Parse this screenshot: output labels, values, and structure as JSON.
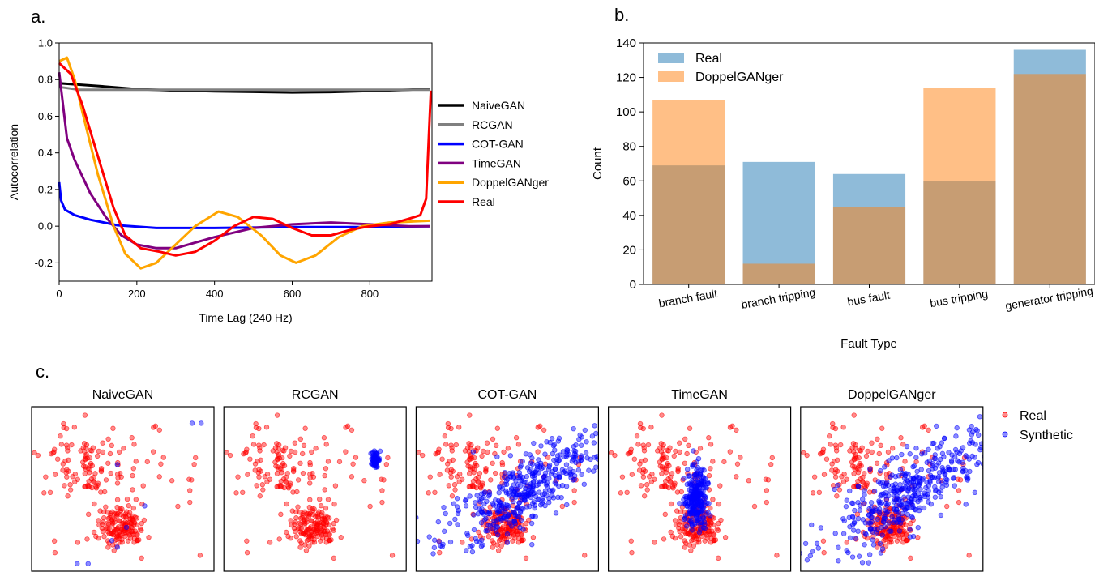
{
  "panels": {
    "a": "a.",
    "b": "b.",
    "c": "c."
  },
  "chart_data": [
    {
      "type": "line",
      "xlabel": "Time Lag (240 Hz)",
      "ylabel": "Autocorrelation",
      "xlim": [
        0,
        960
      ],
      "ylim": [
        -0.3,
        1.0
      ],
      "xticks": [
        "0",
        "200",
        "400",
        "600",
        "800"
      ],
      "yticks": [
        "-0.2",
        "0.0",
        "0.2",
        "0.4",
        "0.6",
        "0.8",
        "1.0"
      ],
      "legend_position": "outside-right",
      "series": [
        {
          "name": "NaiveGAN",
          "color": "#000000",
          "points": [
            [
              0,
              0.78
            ],
            [
              100,
              0.765
            ],
            [
              200,
              0.748
            ],
            [
              300,
              0.74
            ],
            [
              400,
              0.736
            ],
            [
              500,
              0.733
            ],
            [
              600,
              0.73
            ],
            [
              700,
              0.732
            ],
            [
              800,
              0.738
            ],
            [
              900,
              0.745
            ],
            [
              955,
              0.75
            ]
          ]
        },
        {
          "name": "RCGAN",
          "color": "#808080",
          "points": [
            [
              0,
              0.76
            ],
            [
              50,
              0.745
            ],
            [
              200,
              0.745
            ],
            [
              400,
              0.745
            ],
            [
              600,
              0.745
            ],
            [
              800,
              0.745
            ],
            [
              955,
              0.745
            ]
          ]
        },
        {
          "name": "COT-GAN",
          "color": "#0000ff",
          "points": [
            [
              0,
              0.24
            ],
            [
              5,
              0.14
            ],
            [
              15,
              0.09
            ],
            [
              40,
              0.06
            ],
            [
              80,
              0.035
            ],
            [
              150,
              0.005
            ],
            [
              250,
              -0.01
            ],
            [
              400,
              -0.01
            ],
            [
              600,
              -0.005
            ],
            [
              800,
              -0.005
            ],
            [
              955,
              0.0
            ]
          ]
        },
        {
          "name": "TimeGAN",
          "color": "#800080",
          "points": [
            [
              0,
              0.84
            ],
            [
              20,
              0.48
            ],
            [
              40,
              0.36
            ],
            [
              80,
              0.18
            ],
            [
              120,
              0.05
            ],
            [
              160,
              -0.05
            ],
            [
              200,
              -0.1
            ],
            [
              250,
              -0.12
            ],
            [
              300,
              -0.12
            ],
            [
              400,
              -0.06
            ],
            [
              500,
              -0.01
            ],
            [
              600,
              0.01
            ],
            [
              700,
              0.02
            ],
            [
              800,
              0.01
            ],
            [
              900,
              0.0
            ],
            [
              955,
              0.0
            ]
          ]
        },
        {
          "name": "DoppelGANger",
          "color": "#ffa500",
          "points": [
            [
              0,
              0.9
            ],
            [
              20,
              0.92
            ],
            [
              40,
              0.8
            ],
            [
              60,
              0.62
            ],
            [
              100,
              0.28
            ],
            [
              140,
              0.0
            ],
            [
              170,
              -0.15
            ],
            [
              210,
              -0.23
            ],
            [
              250,
              -0.2
            ],
            [
              300,
              -0.1
            ],
            [
              350,
              0.0
            ],
            [
              410,
              0.08
            ],
            [
              460,
              0.05
            ],
            [
              520,
              -0.05
            ],
            [
              570,
              -0.16
            ],
            [
              610,
              -0.2
            ],
            [
              660,
              -0.16
            ],
            [
              720,
              -0.06
            ],
            [
              780,
              0.0
            ],
            [
              850,
              0.02
            ],
            [
              955,
              0.03
            ]
          ]
        },
        {
          "name": "Real",
          "color": "#ff0000",
          "points": [
            [
              0,
              0.89
            ],
            [
              30,
              0.83
            ],
            [
              60,
              0.66
            ],
            [
              100,
              0.38
            ],
            [
              140,
              0.1
            ],
            [
              170,
              -0.05
            ],
            [
              210,
              -0.12
            ],
            [
              260,
              -0.14
            ],
            [
              300,
              -0.16
            ],
            [
              350,
              -0.14
            ],
            [
              400,
              -0.08
            ],
            [
              450,
              0.0
            ],
            [
              500,
              0.05
            ],
            [
              550,
              0.04
            ],
            [
              600,
              -0.01
            ],
            [
              650,
              -0.05
            ],
            [
              700,
              -0.05
            ],
            [
              750,
              -0.02
            ],
            [
              800,
              0.0
            ],
            [
              850,
              0.01
            ],
            [
              900,
              0.04
            ],
            [
              930,
              0.06
            ],
            [
              945,
              0.15
            ],
            [
              952,
              0.5
            ],
            [
              957,
              0.74
            ]
          ]
        }
      ]
    },
    {
      "type": "bar",
      "xlabel": "Fault Type",
      "ylabel": "Count",
      "ylim": [
        0,
        140
      ],
      "yticks": [
        "0",
        "20",
        "40",
        "60",
        "80",
        "100",
        "120",
        "140"
      ],
      "categories": [
        "branch fault",
        "branch tripping",
        "bus fault",
        "bus tripping",
        "generator tripping"
      ],
      "legend_position": "upper-left",
      "series": [
        {
          "name": "Real",
          "color": "#1f77b4",
          "values": [
            69,
            71,
            64,
            60,
            136
          ]
        },
        {
          "name": "DoppelGANger",
          "color": "#ff7f0e",
          "values": [
            107,
            12,
            45,
            114,
            122
          ]
        }
      ]
    },
    {
      "type": "scatter",
      "panels": [
        "NaiveGAN",
        "RCGAN",
        "COT-GAN",
        "TimeGAN",
        "DoppelGANger"
      ],
      "legend": [
        "Real",
        "Synthetic"
      ],
      "real_color": "#ff0000",
      "synthetic_color": "#0000ff",
      "synthetic_spread": [
        "scattered-few",
        "tight-cluster-upper-right",
        "broad-diagonal",
        "tight-vertical-cluster-center",
        "broad-diagonal"
      ]
    }
  ]
}
